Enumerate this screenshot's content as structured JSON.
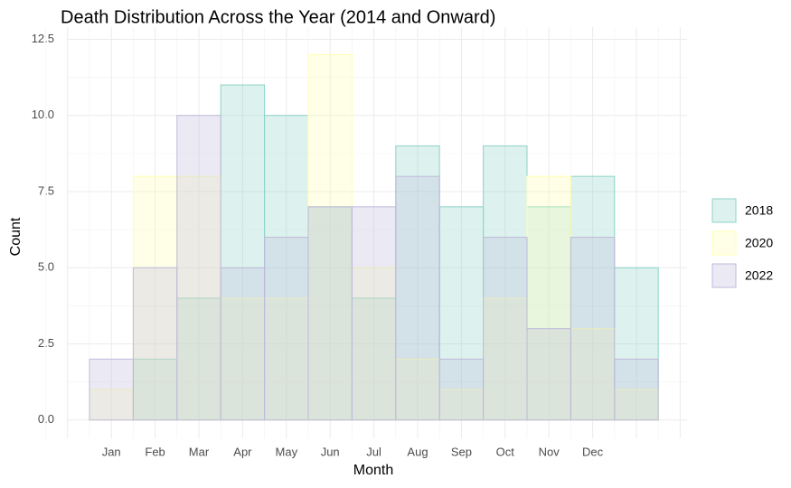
{
  "chart_data": {
    "type": "histogram",
    "title": "Death Distribution Across the Year (2014 and Onward)",
    "x_label": "Month",
    "y_label": "Count",
    "categories": [
      "Jan",
      "Feb",
      "Mar",
      "Apr",
      "May",
      "Jun",
      "Jul",
      "Aug",
      "Sep",
      "Oct",
      "Nov",
      "Dec",
      null
    ],
    "series": [
      {
        "name": "2018",
        "color": "#8dd3c7",
        "values": [
          0,
          2,
          4,
          11,
          10,
          7,
          4,
          9,
          7,
          9,
          7,
          8,
          5
        ]
      },
      {
        "name": "2020",
        "color": "#ffffb3",
        "values": [
          1,
          8,
          8,
          4,
          4,
          12,
          5,
          2,
          1,
          4,
          8,
          3,
          1
        ]
      },
      {
        "name": "2022",
        "color": "#bebada",
        "values": [
          2,
          5,
          10,
          5,
          6,
          7,
          7,
          8,
          2,
          6,
          3,
          6,
          2
        ]
      }
    ],
    "ylim": [
      -0.6,
      12.9
    ],
    "yticks": [
      {
        "value": 0,
        "label": "0.0"
      },
      2.5,
      {
        "value": 5,
        "label": "5.0"
      },
      7.5,
      {
        "value": 10,
        "label": "10.0"
      },
      12.5
    ],
    "grid": true,
    "legend": "right"
  }
}
